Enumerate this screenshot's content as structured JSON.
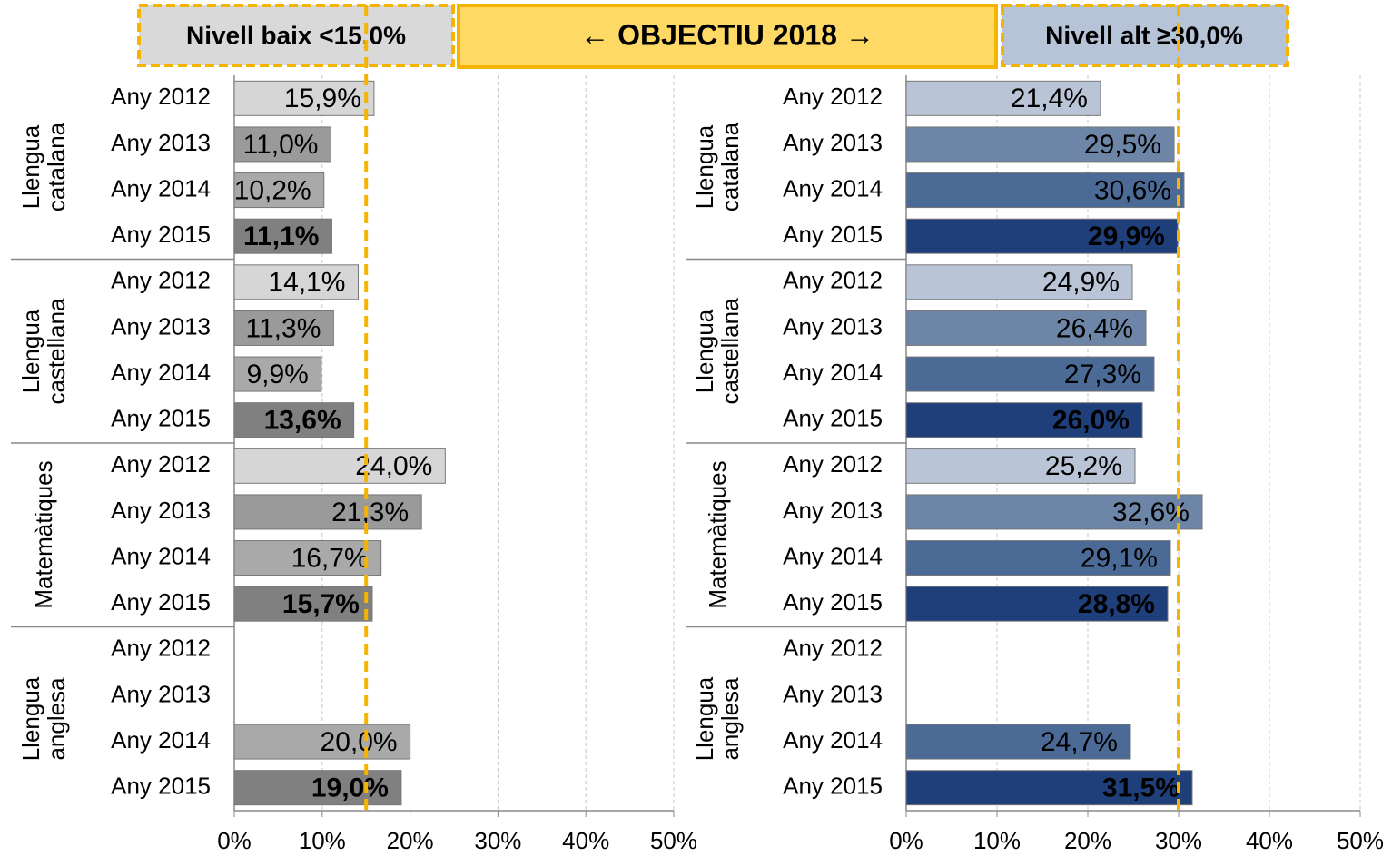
{
  "title": "← OBJECTIU 2018 →",
  "chart_data": [
    {
      "type": "bar",
      "orientation": "horizontal",
      "annotation": "Nivell baix <15,0%",
      "reference_line": 15,
      "groups": [
        "Llengua catalana",
        "Llengua castellana",
        "Matemàtiques",
        "Llengua anglesa"
      ],
      "categories": [
        "Any 2012",
        "Any 2013",
        "Any 2014",
        "Any 2015",
        "Any 2012",
        "Any 2013",
        "Any 2014",
        "Any 2015",
        "Any 2012",
        "Any 2013",
        "Any 2014",
        "Any 2015",
        "Any 2012",
        "Any 2013",
        "Any 2014",
        "Any 2015"
      ],
      "values": [
        15.9,
        11.0,
        10.2,
        11.1,
        14.1,
        11.3,
        9.9,
        13.6,
        24.0,
        21.3,
        16.7,
        15.7,
        null,
        null,
        20.0,
        19.0
      ],
      "value_labels": [
        "15,9%",
        "11,0%",
        "10,2%",
        "11,1%",
        "14,1%",
        "11,3%",
        "9,9%",
        "13,6%",
        "24,0%",
        "21,3%",
        "16,7%",
        "15,7%",
        null,
        null,
        "20,0%",
        "19,0%"
      ],
      "colors": [
        "#d6d6d6",
        "#9a9a9a",
        "#a9a9a9",
        "#808080",
        "#d6d6d6",
        "#9a9a9a",
        "#a9a9a9",
        "#808080",
        "#d6d6d6",
        "#9a9a9a",
        "#a9a9a9",
        "#808080",
        "#d6d6d6",
        "#9a9a9a",
        "#a9a9a9",
        "#808080"
      ],
      "xlim": [
        0,
        50
      ],
      "xticks": [
        {
          "value": 0,
          "label": "0%"
        },
        {
          "value": 10,
          "label": "10%"
        },
        {
          "value": 20,
          "label": "20%"
        },
        {
          "value": 30,
          "label": "30%"
        },
        {
          "value": 40,
          "label": "40%"
        },
        {
          "value": 50,
          "label": "50%"
        }
      ],
      "grid": true
    },
    {
      "type": "bar",
      "orientation": "horizontal",
      "annotation": "Nivell alt ≥30,0%",
      "reference_line": 30,
      "groups": [
        "Llengua catalana",
        "Llengua castellana",
        "Matemàtiques",
        "Llengua anglesa"
      ],
      "categories": [
        "Any 2012",
        "Any 2013",
        "Any 2014",
        "Any 2015",
        "Any 2012",
        "Any 2013",
        "Any 2014",
        "Any 2015",
        "Any 2012",
        "Any 2013",
        "Any 2014",
        "Any 2015",
        "Any 2012",
        "Any 2013",
        "Any 2014",
        "Any 2015"
      ],
      "values": [
        21.4,
        29.5,
        30.6,
        29.9,
        24.9,
        26.4,
        27.3,
        26.0,
        25.2,
        32.6,
        29.1,
        28.8,
        null,
        null,
        24.7,
        31.5
      ],
      "value_labels": [
        "21,4%",
        "29,5%",
        "30,6%",
        "29,9%",
        "24,9%",
        "26,4%",
        "27,3%",
        "26,0%",
        "25,2%",
        "32,6%",
        "29,1%",
        "28,8%",
        null,
        null,
        "24,7%",
        "31,5%"
      ],
      "colors": [
        "#b9c5d6",
        "#6d86a7",
        "#4b6a95",
        "#1f3f7a",
        "#b9c5d6",
        "#6d86a7",
        "#4b6a95",
        "#1f3f7a",
        "#b9c5d6",
        "#6d86a7",
        "#4b6a95",
        "#1f3f7a",
        "#b9c5d6",
        "#6d86a7",
        "#4b6a95",
        "#1f3f7a"
      ],
      "xlim": [
        0,
        50
      ],
      "xticks": [
        {
          "value": 0,
          "label": "0%"
        },
        {
          "value": 10,
          "label": "10%"
        },
        {
          "value": 20,
          "label": "20%"
        },
        {
          "value": 30,
          "label": "30%"
        },
        {
          "value": 40,
          "label": "40%"
        },
        {
          "value": 50,
          "label": "50%"
        }
      ],
      "grid": true
    }
  ]
}
